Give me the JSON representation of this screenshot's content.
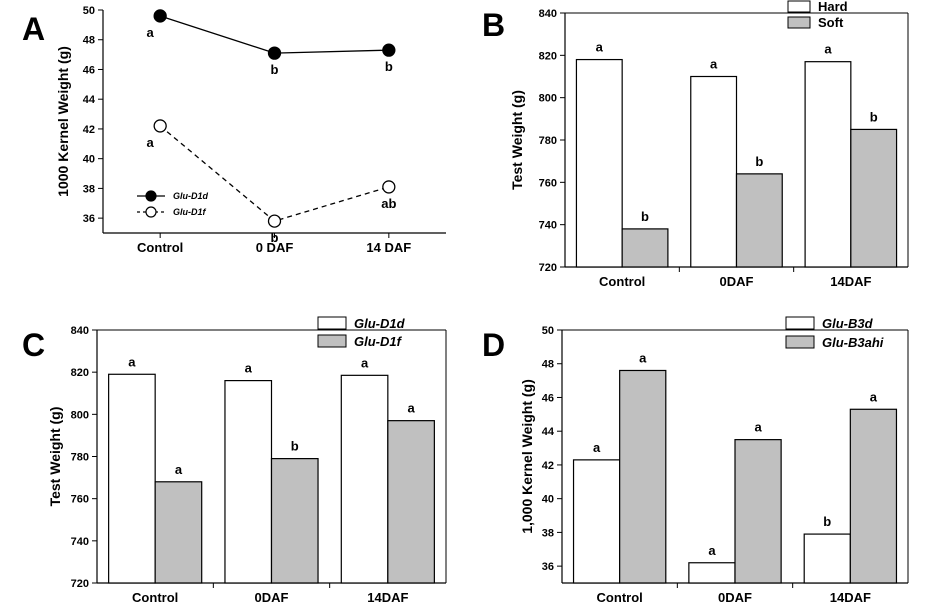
{
  "colors": {
    "hard": "#ffffff",
    "soft": "#c0c0c0",
    "stroke": "#000000"
  },
  "chart_data": [
    {
      "panel": "A",
      "type": "line",
      "categories": [
        "Control",
        "0 DAF",
        "14 DAF"
      ],
      "ylabel": "1000 Kernel Weight (g)",
      "ylim": [
        35,
        50
      ],
      "yticks": [
        36,
        38,
        40,
        42,
        44,
        46,
        48,
        50
      ],
      "legend": "bottom-left",
      "series": [
        {
          "name": "Glu-D1d",
          "marker": "filled",
          "dash": "solid",
          "values": [
            49.6,
            47.1,
            47.3
          ],
          "labels": [
            "a",
            "b",
            "b"
          ]
        },
        {
          "name": "Glu-D1f",
          "marker": "open",
          "dash": "dashed",
          "values": [
            42.2,
            35.8,
            38.1
          ],
          "labels": [
            "a",
            "b",
            "ab"
          ]
        }
      ]
    },
    {
      "panel": "B",
      "type": "bar",
      "categories": [
        "Control",
        "0DAF",
        "14DAF"
      ],
      "ylabel": "Test Weight (g)",
      "ylim": [
        720,
        840
      ],
      "yticks": [
        720,
        740,
        760,
        780,
        800,
        820,
        840
      ],
      "legend": "top-right",
      "series": [
        {
          "name": "Hard",
          "fill": "hard",
          "values": [
            818,
            810,
            817
          ],
          "labels": [
            "a",
            "a",
            "a"
          ]
        },
        {
          "name": "Soft",
          "fill": "soft",
          "values": [
            738,
            764,
            785
          ],
          "labels": [
            "b",
            "b",
            "b"
          ]
        }
      ]
    },
    {
      "panel": "C",
      "type": "bar",
      "categories": [
        "Control",
        "0DAF",
        "14DAF"
      ],
      "ylabel": "Test Weight (g)",
      "ylim": [
        720,
        840
      ],
      "yticks": [
        720,
        740,
        760,
        780,
        800,
        820,
        840
      ],
      "legend": "top-right",
      "series": [
        {
          "name": "Glu-D1d",
          "fill": "hard",
          "values": [
            819,
            816,
            818.5
          ],
          "labels": [
            "a",
            "a",
            "a"
          ]
        },
        {
          "name": "Glu-D1f",
          "fill": "soft",
          "values": [
            768,
            779,
            797
          ],
          "labels": [
            "a",
            "b",
            "a"
          ]
        }
      ]
    },
    {
      "panel": "D",
      "type": "bar",
      "categories": [
        "Control",
        "0DAF",
        "14DAF"
      ],
      "ylabel": "1,000 Kernel Weight (g)",
      "ylim": [
        35,
        50
      ],
      "yticks": [
        36,
        38,
        40,
        42,
        44,
        46,
        48,
        50
      ],
      "legend": "top-right",
      "series": [
        {
          "name": "Glu-B3d",
          "fill": "hard",
          "values": [
            42.3,
            36.2,
            37.9
          ],
          "labels": [
            "a",
            "a",
            "b"
          ]
        },
        {
          "name": "Glu-B3ahi",
          "fill": "soft",
          "values": [
            47.6,
            43.5,
            45.3
          ],
          "labels": [
            "a",
            "a",
            "a"
          ]
        }
      ]
    }
  ]
}
